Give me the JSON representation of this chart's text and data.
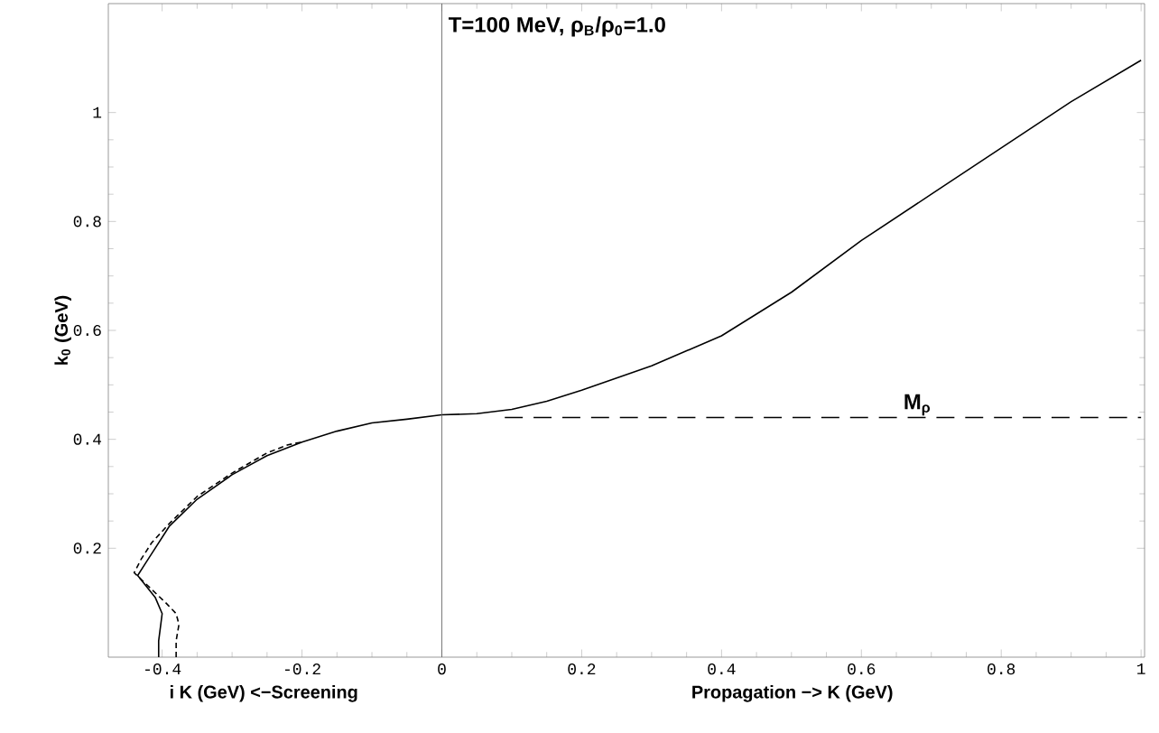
{
  "chart_data": {
    "type": "line",
    "xlabel": "Propagation −> K (GeV)",
    "ylabel": "k$_{0}$ (GeV)",
    "annotations": [
      "T=100 MeV,    ρ$_{B}$/ρ$_{0}$=1.0",
      "i K  (GeV) <−Screening",
      {
        "text": "M$_{ρ}$",
        "x": 0.68,
        "y": 0.44
      }
    ],
    "xlim": [
      -0.477,
      1.005
    ],
    "ylim": [
      0,
      1.2
    ],
    "xticks": [
      -0.4,
      -0.2,
      0,
      0.2,
      0.4,
      0.6,
      0.8,
      1
    ],
    "yticks": [
      0.2,
      0.4,
      0.6,
      0.8,
      1
    ],
    "ref_lines": [
      {
        "axis": "x",
        "value": 0
      }
    ],
    "series": [
      {
        "color": "#000000",
        "line_style": "solid",
        "x": [
          -0.405,
          -0.405,
          -0.402,
          -0.4,
          -0.41,
          -0.435,
          -0.425,
          -0.41,
          -0.39,
          -0.35,
          -0.3,
          -0.25,
          -0.2,
          -0.15,
          -0.1,
          -0.05,
          0,
          0.05,
          0.1,
          0.15,
          0.2,
          0.3,
          0.4,
          0.5,
          0.6,
          0.7,
          0.8,
          0.9,
          1.0
        ],
        "values": [
          0,
          0.03,
          0.06,
          0.08,
          0.11,
          0.15,
          0.17,
          0.2,
          0.24,
          0.29,
          0.335,
          0.37,
          0.395,
          0.415,
          0.43,
          0.437,
          0.445,
          0.447,
          0.455,
          0.47,
          0.49,
          0.535,
          0.59,
          0.67,
          0.765,
          0.85,
          0.935,
          1.02,
          1.096
        ]
      },
      {
        "color": "#000000",
        "line_style": "dashed",
        "x": [
          -0.38,
          -0.38,
          -0.376,
          -0.38,
          -0.395,
          -0.44,
          -0.43,
          -0.415,
          -0.39,
          -0.35,
          -0.3,
          -0.25,
          -0.22,
          -0.2
        ],
        "values": [
          0,
          0.03,
          0.06,
          0.08,
          0.1,
          0.155,
          0.18,
          0.21,
          0.245,
          0.295,
          0.338,
          0.375,
          0.39,
          0.395
        ]
      },
      {
        "color": "#000000",
        "line_style": "dashed",
        "x": [
          0.09,
          1.0
        ],
        "values": [
          0.44,
          0.44
        ]
      }
    ]
  }
}
